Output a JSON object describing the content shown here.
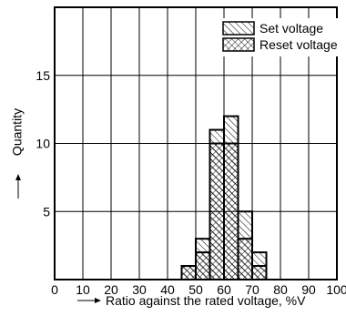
{
  "chart_data": {
    "type": "bar",
    "title": "",
    "xlabel": "Ratio against the rated voltage, %V",
    "ylabel": "Quantity",
    "xlim": [
      0,
      100
    ],
    "ylim": [
      0,
      20
    ],
    "xticks": [
      0,
      10,
      20,
      30,
      40,
      50,
      60,
      70,
      80,
      90,
      100
    ],
    "yticks": [
      5,
      10,
      15
    ],
    "grid": true,
    "legend_position": "top-right",
    "bin_width": 5,
    "series": [
      {
        "name": "Set voltage",
        "pattern": "diagonal-hatch",
        "bins": [
          {
            "x": 45,
            "count": 1
          },
          {
            "x": 50,
            "count": 3
          },
          {
            "x": 55,
            "count": 11
          },
          {
            "x": 60,
            "count": 12
          },
          {
            "x": 65,
            "count": 5
          },
          {
            "x": 70,
            "count": 2
          },
          {
            "x": 75,
            "count": 0
          }
        ]
      },
      {
        "name": "Reset voltage",
        "pattern": "cross-hatch",
        "bins": [
          {
            "x": 45,
            "count": 1
          },
          {
            "x": 50,
            "count": 2
          },
          {
            "x": 55,
            "count": 10
          },
          {
            "x": 60,
            "count": 10
          },
          {
            "x": 65,
            "count": 3
          },
          {
            "x": 70,
            "count": 1
          },
          {
            "x": 75,
            "count": 0
          }
        ]
      }
    ],
    "colors": {
      "ink": "#000000",
      "background": "#ffffff"
    }
  }
}
